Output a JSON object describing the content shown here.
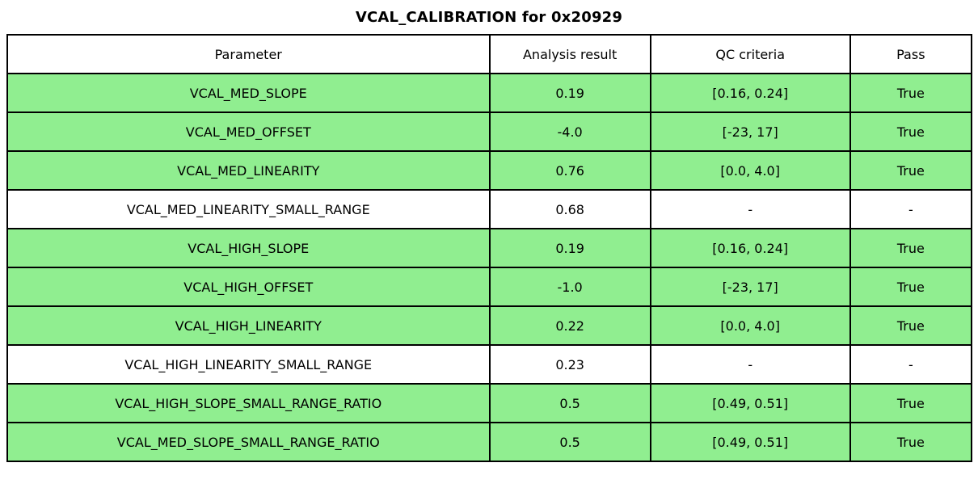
{
  "title": "VCAL_CALIBRATION for 0x20929",
  "colors": {
    "pass_row_bg": "#90EE90",
    "neutral_row_bg": "#FFFFFF",
    "header_bg": "#FFFFFF",
    "border": "#000000",
    "text": "#000000"
  },
  "chart_data": {
    "type": "table",
    "title": "VCAL_CALIBRATION for 0x20929",
    "columns": [
      "Parameter",
      "Analysis result",
      "QC criteria",
      "Pass"
    ],
    "column_width_percents": [
      50.0,
      16.7,
      20.7,
      12.6
    ],
    "rows": [
      {
        "parameter": "VCAL_MED_SLOPE",
        "analysis_result": "0.19",
        "qc_criteria": "[0.16, 0.24]",
        "pass": "True",
        "highlight": true
      },
      {
        "parameter": "VCAL_MED_OFFSET",
        "analysis_result": "-4.0",
        "qc_criteria": "[-23, 17]",
        "pass": "True",
        "highlight": true
      },
      {
        "parameter": "VCAL_MED_LINEARITY",
        "analysis_result": "0.76",
        "qc_criteria": "[0.0, 4.0]",
        "pass": "True",
        "highlight": true
      },
      {
        "parameter": "VCAL_MED_LINEARITY_SMALL_RANGE",
        "analysis_result": "0.68",
        "qc_criteria": "-",
        "pass": "-",
        "highlight": false
      },
      {
        "parameter": "VCAL_HIGH_SLOPE",
        "analysis_result": "0.19",
        "qc_criteria": "[0.16, 0.24]",
        "pass": "True",
        "highlight": true
      },
      {
        "parameter": "VCAL_HIGH_OFFSET",
        "analysis_result": "-1.0",
        "qc_criteria": "[-23, 17]",
        "pass": "True",
        "highlight": true
      },
      {
        "parameter": "VCAL_HIGH_LINEARITY",
        "analysis_result": "0.22",
        "qc_criteria": "[0.0, 4.0]",
        "pass": "True",
        "highlight": true
      },
      {
        "parameter": "VCAL_HIGH_LINEARITY_SMALL_RANGE",
        "analysis_result": "0.23",
        "qc_criteria": "-",
        "pass": "-",
        "highlight": false
      },
      {
        "parameter": "VCAL_HIGH_SLOPE_SMALL_RANGE_RATIO",
        "analysis_result": "0.5",
        "qc_criteria": "[0.49, 0.51]",
        "pass": "True",
        "highlight": true
      },
      {
        "parameter": "VCAL_MED_SLOPE_SMALL_RANGE_RATIO",
        "analysis_result": "0.5",
        "qc_criteria": "[0.49, 0.51]",
        "pass": "True",
        "highlight": true
      }
    ]
  }
}
